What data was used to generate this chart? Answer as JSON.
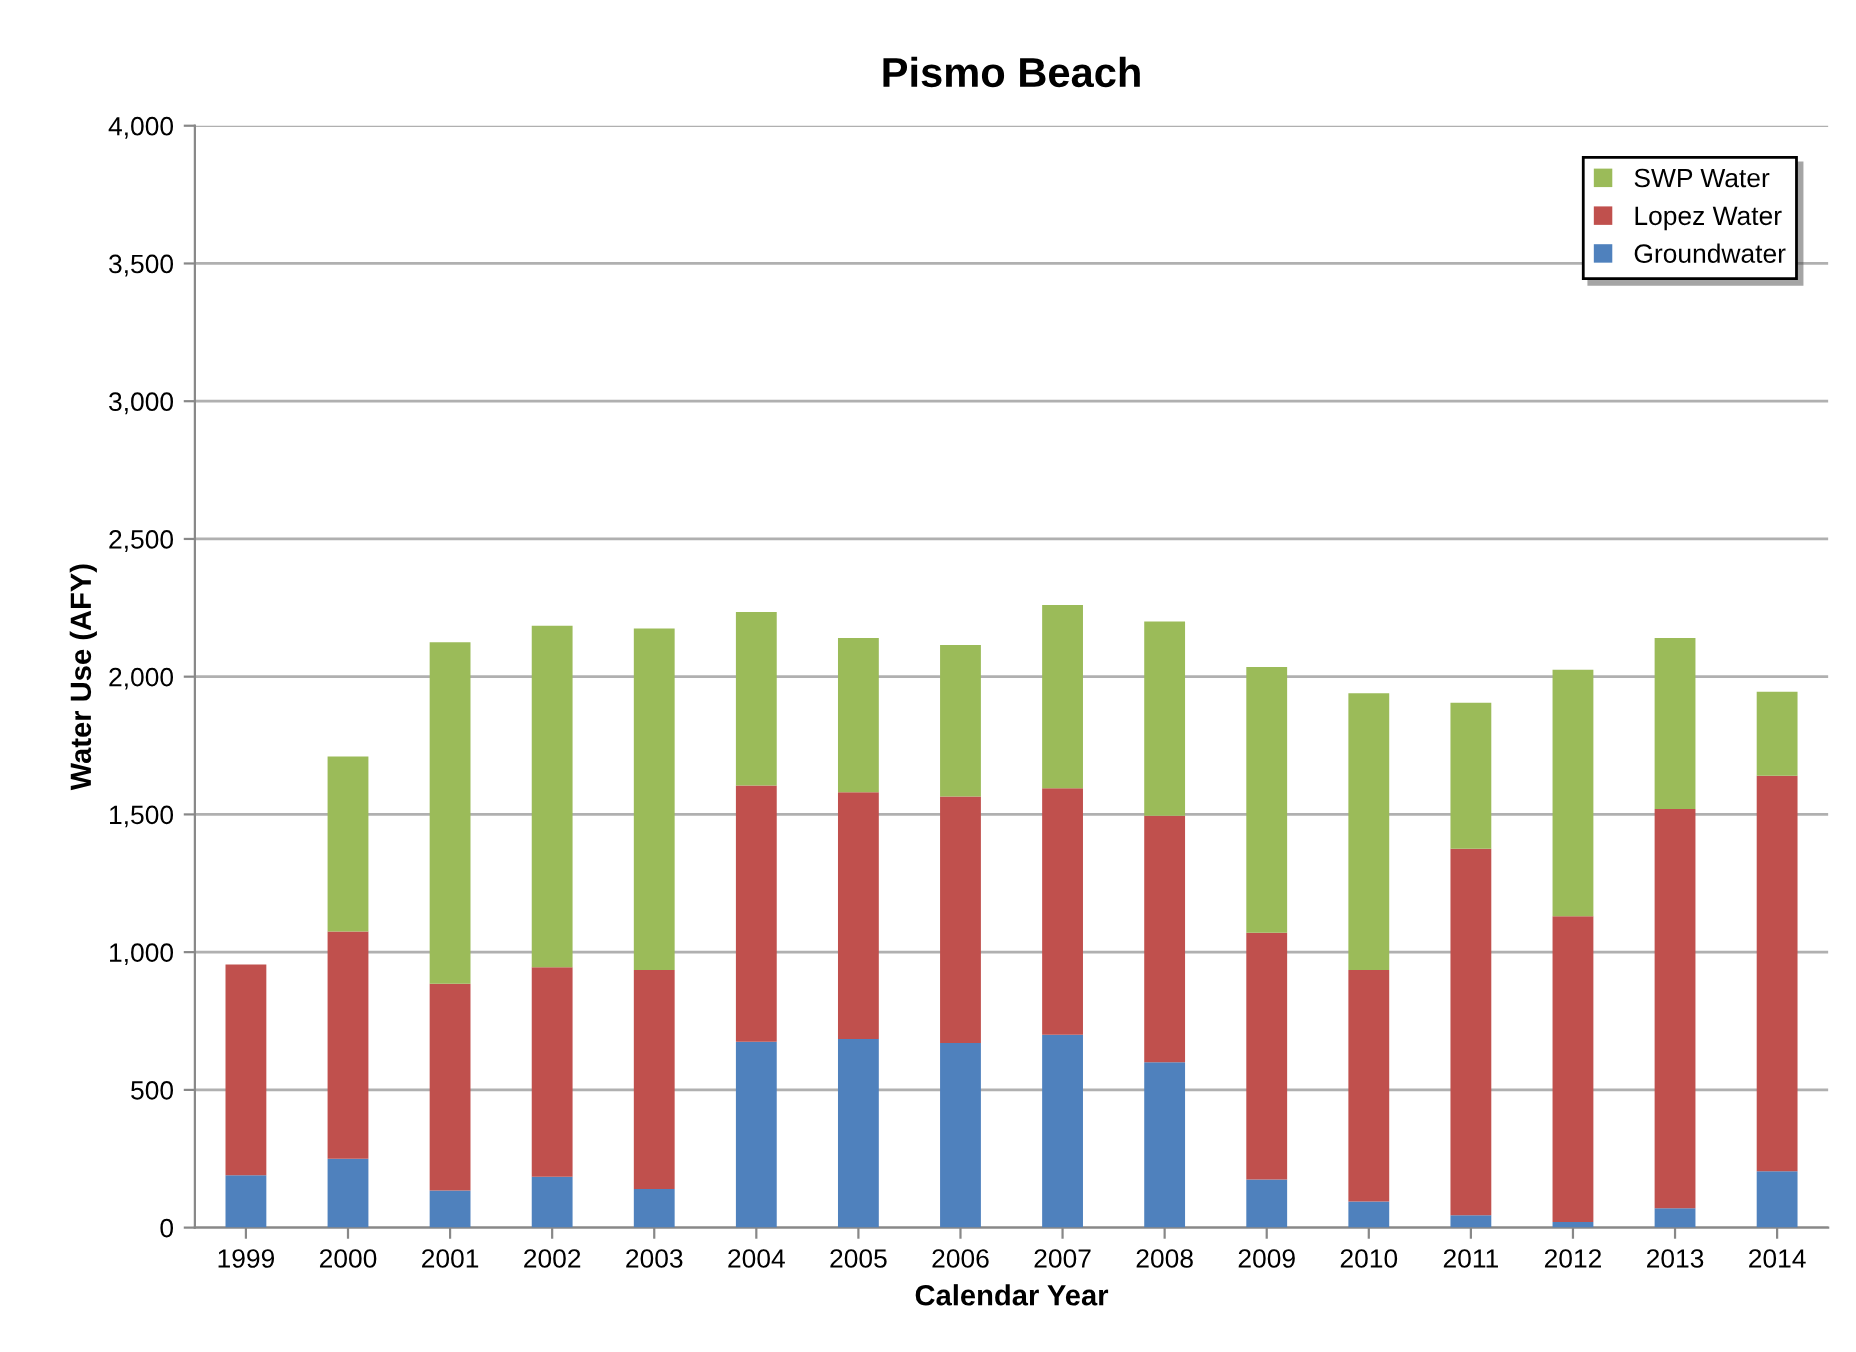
{
  "chart_data": {
    "type": "bar",
    "stacked": true,
    "title": "Pismo Beach",
    "xlabel": "Calendar Year",
    "ylabel": "Water Use (AFY)",
    "categories": [
      "1999",
      "2000",
      "2001",
      "2002",
      "2003",
      "2004",
      "2005",
      "2006",
      "2007",
      "2008",
      "2009",
      "2010",
      "2011",
      "2012",
      "2013",
      "2014"
    ],
    "series": [
      {
        "name": "Groundwater",
        "color": "#4f81bd",
        "values": [
          190,
          250,
          135,
          185,
          140,
          675,
          685,
          670,
          700,
          600,
          175,
          95,
          45,
          20,
          70,
          205
        ]
      },
      {
        "name": "Lopez Water",
        "color": "#c0504d",
        "values": [
          765,
          825,
          750,
          760,
          795,
          930,
          895,
          895,
          895,
          895,
          895,
          840,
          1330,
          1110,
          1450,
          1435
        ]
      },
      {
        "name": "SWP Water",
        "color": "#9bbb59",
        "values": [
          0,
          635,
          1240,
          1240,
          1240,
          630,
          560,
          550,
          665,
          705,
          965,
          1005,
          530,
          895,
          620,
          305
        ]
      }
    ],
    "ylim": [
      0,
      4000
    ],
    "yticks": [
      {
        "value": 0,
        "label": "0"
      },
      {
        "value": 500,
        "label": "500"
      },
      {
        "value": 1000,
        "label": "1,000"
      },
      {
        "value": 1500,
        "label": "1,500"
      },
      {
        "value": 2000,
        "label": "2,000"
      },
      {
        "value": 2500,
        "label": "2,500"
      },
      {
        "value": 3000,
        "label": "3,000"
      },
      {
        "value": 3500,
        "label": "3,500"
      },
      {
        "value": 4000,
        "label": "4,000"
      }
    ],
    "grid": "y",
    "legend": "top right"
  }
}
